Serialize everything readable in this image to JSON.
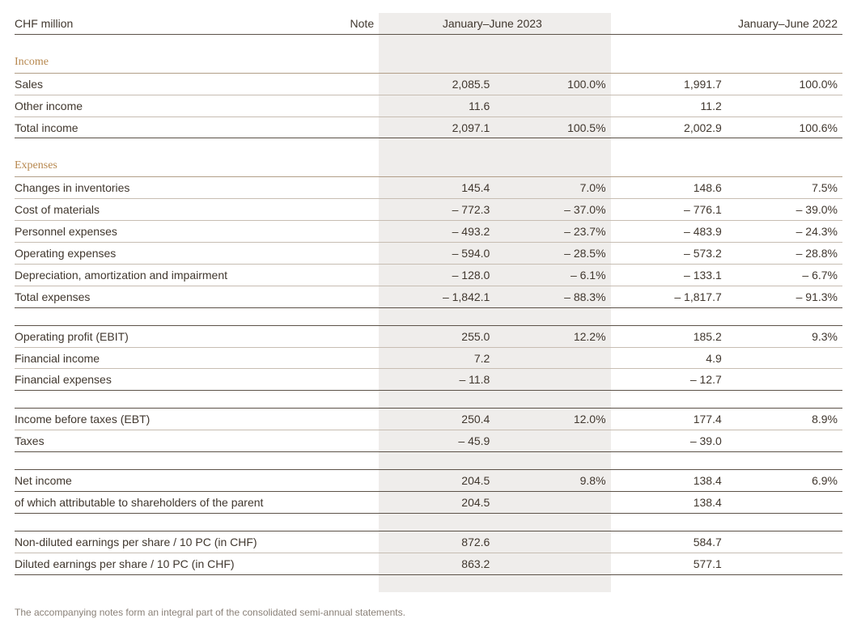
{
  "colors": {
    "text": "#40372e",
    "section_head": "#b7884f",
    "rule_strong": "#5c5248",
    "rule_light": "#c7bdb2",
    "hl_band": "#efedeb",
    "footnote": "#8a8178",
    "background": "#ffffff"
  },
  "typography": {
    "body_family": "Frutiger / Optima / Helvetica-like sans",
    "section_family": "Serif (Georgia-like)",
    "body_size_pt": 10,
    "section_size_pt": 12,
    "footnote_size_pt": 8.5
  },
  "header": {
    "unit_label": "CHF million",
    "note_label": "Note",
    "period1": "January–June 2023",
    "period2": "January–June 2022"
  },
  "columns": {
    "layout": [
      "label",
      "note",
      "value_2023",
      "pct_2023",
      "value_2022",
      "pct_2022"
    ],
    "highlight_band_columns": [
      "value_2023",
      "pct_2023"
    ]
  },
  "sections": [
    {
      "title": "Income",
      "rows": [
        {
          "label": "Sales",
          "v1": "2,085.5",
          "p1": "100.0%",
          "v2": "1,991.7",
          "p2": "100.0%",
          "style": "reg"
        },
        {
          "label": "Other income",
          "v1": "11.6",
          "p1": "",
          "v2": "11.2",
          "p2": "",
          "style": "reg"
        },
        {
          "label": "Total income",
          "v1": "2,097.1",
          "p1": "100.5%",
          "v2": "2,002.9",
          "p2": "100.6%",
          "style": "bold"
        }
      ]
    },
    {
      "title": "Expenses",
      "rows": [
        {
          "label": "Changes in inventories",
          "v1": "145.4",
          "p1": "7.0%",
          "v2": "148.6",
          "p2": "7.5%",
          "style": "reg"
        },
        {
          "label": "Cost of materials",
          "v1": "– 772.3",
          "p1": "– 37.0%",
          "v2": "– 776.1",
          "p2": "– 39.0%",
          "style": "reg"
        },
        {
          "label": "Personnel expenses",
          "v1": "– 493.2",
          "p1": "– 23.7%",
          "v2": "– 483.9",
          "p2": "– 24.3%",
          "style": "reg"
        },
        {
          "label": "Operating expenses",
          "v1": "– 594.0",
          "p1": "– 28.5%",
          "v2": "– 573.2",
          "p2": "– 28.8%",
          "style": "reg"
        },
        {
          "label": "Depreciation, amortization and impairment",
          "v1": "– 128.0",
          "p1": "– 6.1%",
          "v2": "– 133.1",
          "p2": "– 6.7%",
          "style": "reg"
        },
        {
          "label": "Total expenses",
          "v1": "– 1,842.1",
          "p1": "– 88.3%",
          "v2": "– 1,817.7",
          "p2": "– 91.3%",
          "style": "bold"
        }
      ]
    },
    {
      "rows": [
        {
          "label": "Operating profit (EBIT)",
          "v1": "255.0",
          "p1": "12.2%",
          "v2": "185.2",
          "p2": "9.3%",
          "style": "boldtop"
        },
        {
          "label": "Financial income",
          "v1": "7.2",
          "p1": "",
          "v2": "4.9",
          "p2": "",
          "style": "reg"
        },
        {
          "label": "Financial expenses",
          "v1": "– 11.8",
          "p1": "",
          "v2": "– 12.7",
          "p2": "",
          "style": "last"
        }
      ]
    },
    {
      "rows": [
        {
          "label": "Income before taxes (EBT)",
          "v1": "250.4",
          "p1": "12.0%",
          "v2": "177.4",
          "p2": "8.9%",
          "style": "boldtop"
        },
        {
          "label": "Taxes",
          "v1": "– 45.9",
          "p1": "",
          "v2": "– 39.0",
          "p2": "",
          "style": "last"
        }
      ]
    },
    {
      "rows": [
        {
          "label": "Net income",
          "v1": "204.5",
          "p1": "9.8%",
          "v2": "138.4",
          "p2": "6.9%",
          "style": "boldtb"
        },
        {
          "label": "of which attributable to shareholders of the parent",
          "v1": "204.5",
          "p1": "",
          "v2": "138.4",
          "p2": "",
          "style": "last"
        }
      ]
    },
    {
      "rows": [
        {
          "label": "Non-diluted earnings per share / 10 PC (in CHF)",
          "v1": "872.6",
          "p1": "",
          "v2": "584.7",
          "p2": "",
          "style": "regtop"
        },
        {
          "label": "Diluted earnings per share / 10 PC (in CHF)",
          "v1": "863.2",
          "p1": "",
          "v2": "577.1",
          "p2": "",
          "style": "last"
        }
      ]
    }
  ],
  "footnote": "The accompanying notes form an integral part of the consolidated semi-annual statements."
}
